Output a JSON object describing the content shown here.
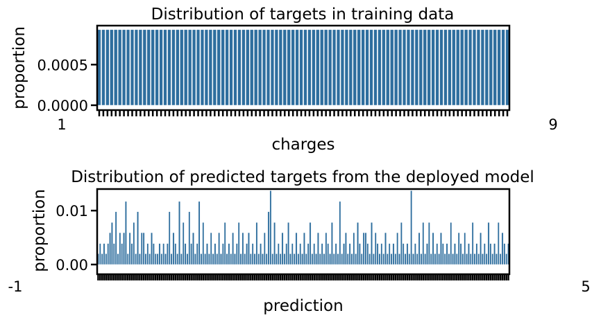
{
  "chart_data": [
    {
      "type": "bar",
      "title": "Distribution of targets in training data",
      "xlabel": "charges",
      "ylabel": "proportion",
      "ylim": [
        -6e-05,
        0.00098
      ],
      "yticks": [
        0.0,
        0.0005
      ],
      "ytick_labels": [
        "0.0000",
        "0.0005"
      ],
      "xtick_first": "1",
      "xtick_last": "9",
      "bar_count": 100,
      "bar_value": 0.00093,
      "color": "#2e6e9e",
      "grid": false
    },
    {
      "type": "bar",
      "title": "Distribution of predicted targets from the deployed model",
      "xlabel": "prediction",
      "ylabel": "proportion",
      "ylim": [
        -0.0018,
        0.014
      ],
      "yticks": [
        0.0,
        0.01
      ],
      "ytick_labels": [
        "0.00",
        "0.01"
      ],
      "xtick_first": "-1",
      "xtick_last": "5",
      "values": [
        0.002,
        0.0039,
        0.002,
        0.0039,
        0.002,
        0.0039,
        0.0059,
        0.0078,
        0.0039,
        0.0098,
        0.002,
        0.0059,
        0.0039,
        0.0059,
        0.0117,
        0.002,
        0.0059,
        0.0039,
        0.0078,
        0.002,
        0.0098,
        0.002,
        0.0059,
        0.0059,
        0.002,
        0.0039,
        0.002,
        0.0059,
        0.0039,
        0.002,
        0.002,
        0.0039,
        0.002,
        0.0039,
        0.002,
        0.0039,
        0.0098,
        0.002,
        0.0059,
        0.0039,
        0.002,
        0.0117,
        0.002,
        0.0078,
        0.0039,
        0.002,
        0.0098,
        0.0039,
        0.0059,
        0.002,
        0.0039,
        0.0117,
        0.002,
        0.0078,
        0.002,
        0.0039,
        0.002,
        0.0059,
        0.002,
        0.0039,
        0.002,
        0.0059,
        0.002,
        0.0039,
        0.0078,
        0.002,
        0.0039,
        0.002,
        0.0059,
        0.002,
        0.0039,
        0.0078,
        0.002,
        0.0059,
        0.002,
        0.0039,
        0.0059,
        0.002,
        0.0039,
        0.002,
        0.0078,
        0.002,
        0.0039,
        0.002,
        0.0059,
        0.002,
        0.0098,
        0.0137,
        0.002,
        0.0078,
        0.002,
        0.0039,
        0.002,
        0.0059,
        0.002,
        0.0039,
        0.0078,
        0.002,
        0.0039,
        0.002,
        0.0059,
        0.002,
        0.0039,
        0.002,
        0.0059,
        0.002,
        0.0039,
        0.0078,
        0.002,
        0.0039,
        0.002,
        0.0059,
        0.002,
        0.0039,
        0.002,
        0.0059,
        0.0039,
        0.002,
        0.0078,
        0.002,
        0.0039,
        0.002,
        0.0117,
        0.002,
        0.0039,
        0.0059,
        0.002,
        0.0039,
        0.002,
        0.0059,
        0.002,
        0.0078,
        0.0039,
        0.002,
        0.0059,
        0.0059,
        0.0039,
        0.002,
        0.0078,
        0.002,
        0.0059,
        0.0039,
        0.002,
        0.0039,
        0.002,
        0.0059,
        0.002,
        0.0039,
        0.002,
        0.0039,
        0.002,
        0.0059,
        0.002,
        0.0078,
        0.0039,
        0.002,
        0.0039,
        0.002,
        0.0137,
        0.002,
        0.0039,
        0.002,
        0.0059,
        0.002,
        0.0078,
        0.002,
        0.0039,
        0.0078,
        0.002,
        0.0059,
        0.002,
        0.0039,
        0.002,
        0.0059,
        0.0039,
        0.002,
        0.0039,
        0.002,
        0.0078,
        0.002,
        0.0039,
        0.002,
        0.0059,
        0.0039,
        0.002,
        0.0059,
        0.002,
        0.0039,
        0.002,
        0.0078,
        0.002,
        0.0039,
        0.002,
        0.0059,
        0.002,
        0.0039,
        0.002,
        0.0078,
        0.0039,
        0.002,
        0.0039,
        0.002,
        0.0078,
        0.002,
        0.0059,
        0.0039,
        0.002,
        0.0039
      ],
      "color": "#2e6e9e",
      "grid": false
    }
  ]
}
